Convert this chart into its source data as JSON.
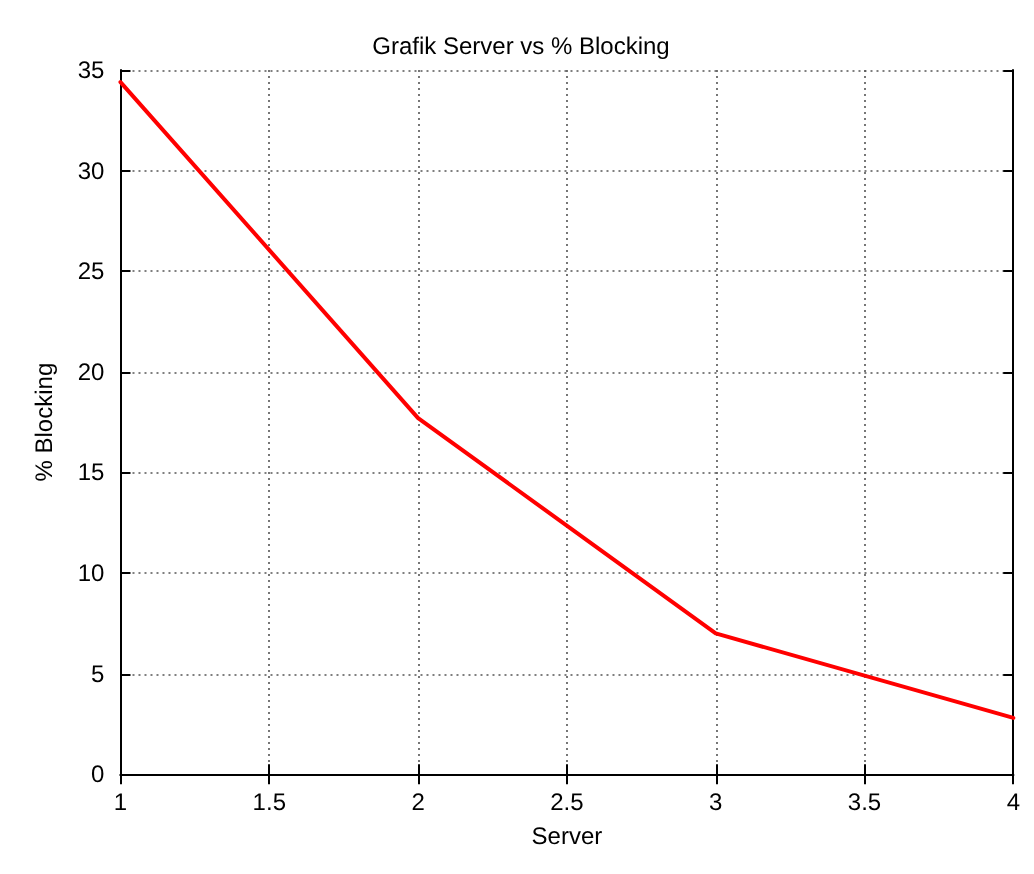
{
  "chart_data": {
    "type": "line",
    "title": "Grafik Server vs % Blocking",
    "xlabel": "Server",
    "ylabel": "% Blocking",
    "x": [
      1,
      2,
      3,
      4
    ],
    "series": [
      {
        "color": "#ff0000",
        "values": [
          34.4,
          17.7,
          7.0,
          2.8
        ]
      }
    ],
    "xlim": [
      1,
      4
    ],
    "xticks": [
      1,
      1.5,
      2,
      2.5,
      3,
      3.5,
      4
    ],
    "ylim": [
      0,
      35
    ],
    "yticks": [
      0,
      5,
      10,
      15,
      20,
      25,
      30,
      35
    ],
    "grid": true,
    "marker": "none",
    "line_style": "solid"
  }
}
